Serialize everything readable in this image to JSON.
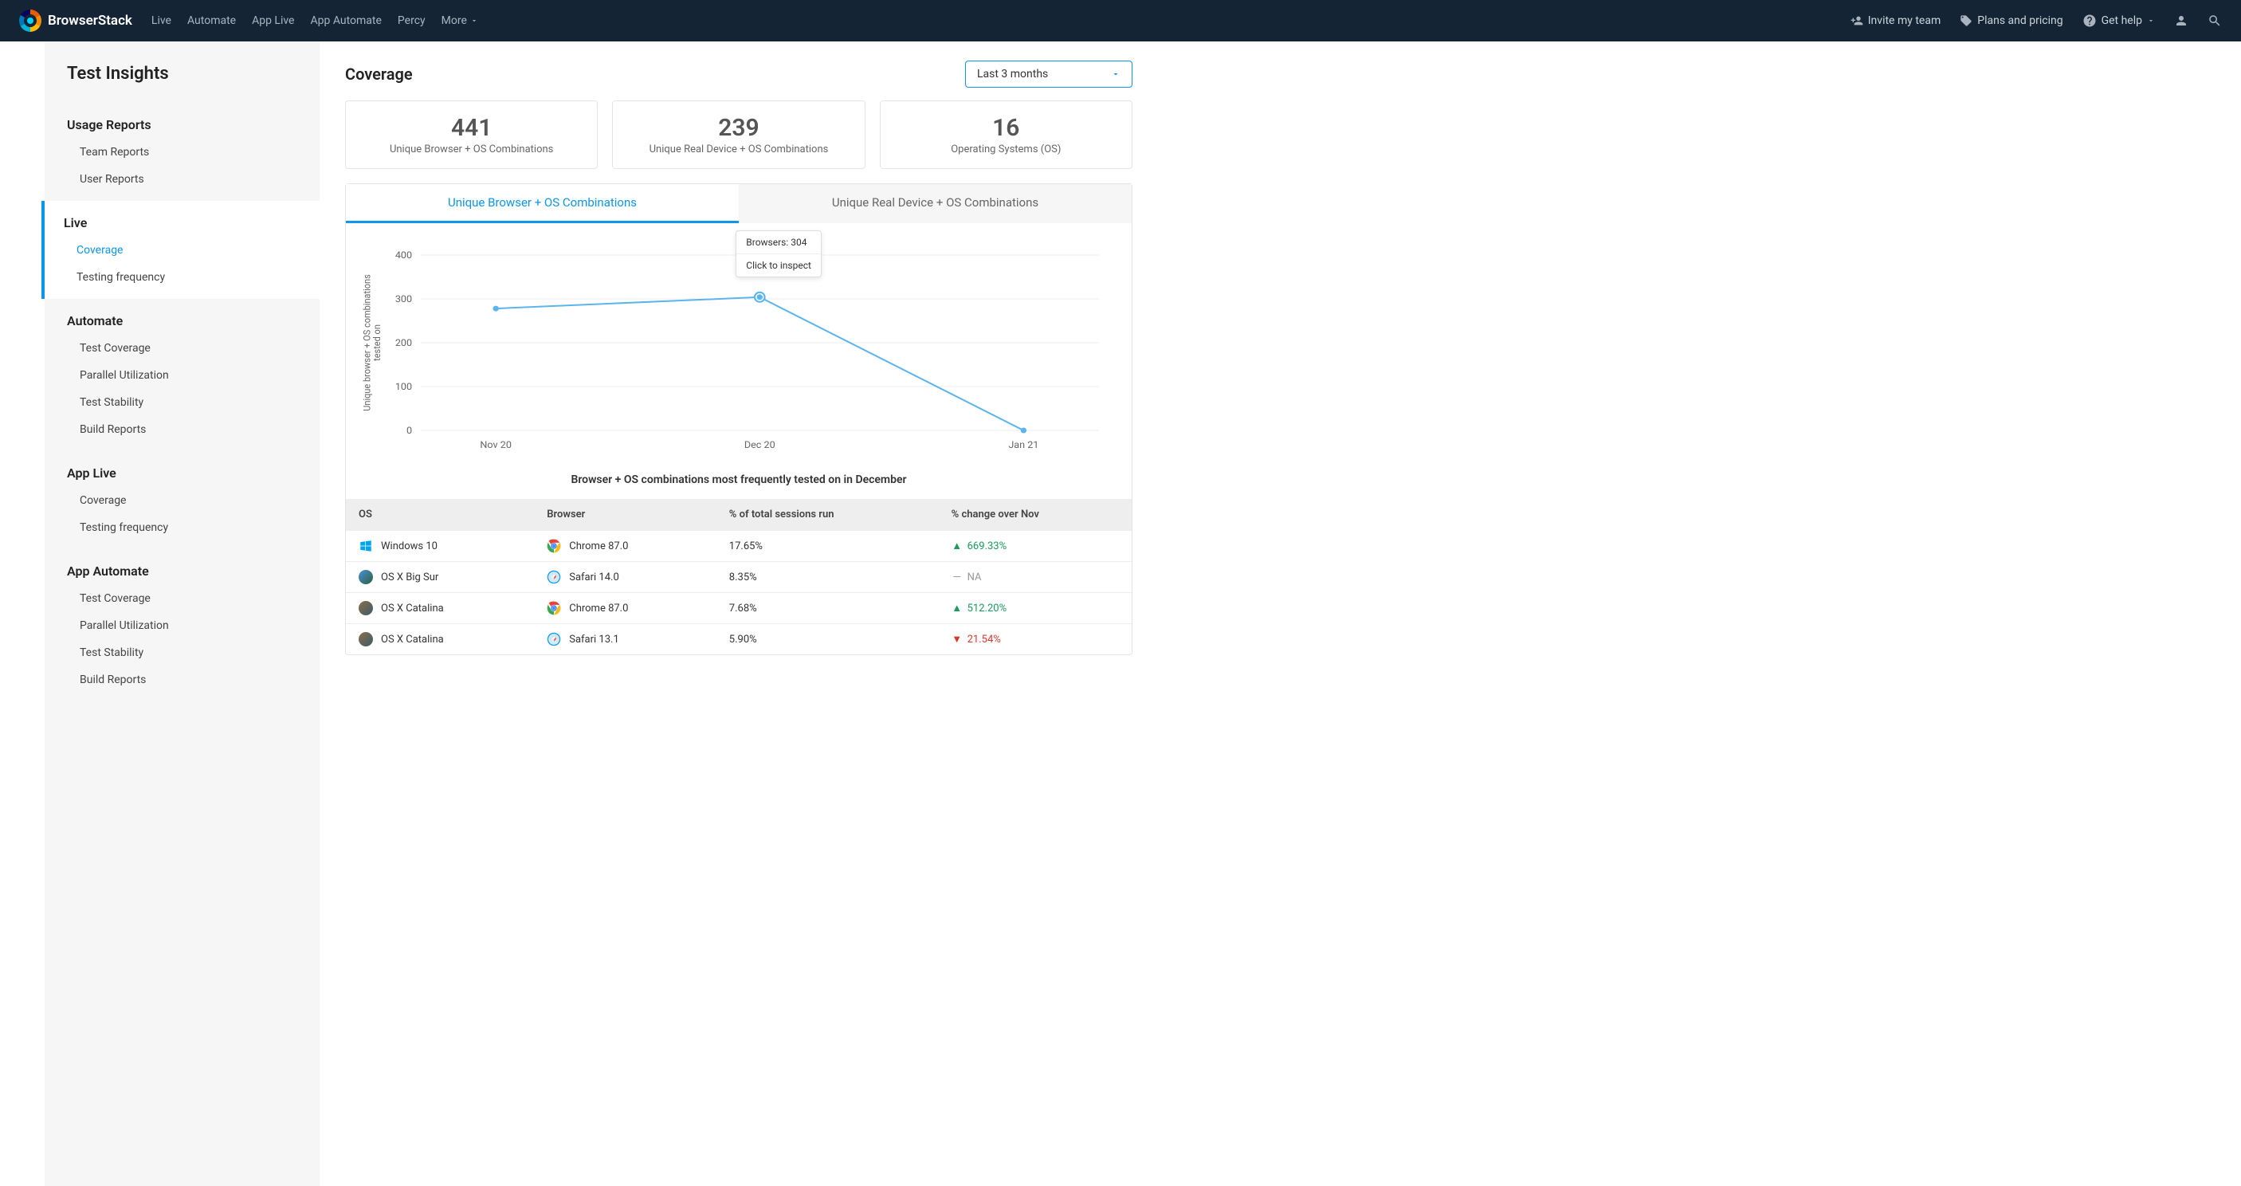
{
  "brand": "BrowserStack",
  "topnav": {
    "links": [
      "Live",
      "Automate",
      "App Live",
      "App Automate",
      "Percy",
      "More"
    ],
    "invite": "Invite my team",
    "plans": "Plans and pricing",
    "help": "Get help"
  },
  "sidebar": {
    "title": "Test Insights",
    "sections": [
      {
        "heading": "Usage Reports",
        "items": [
          "Team Reports",
          "User Reports"
        ],
        "active": false
      },
      {
        "heading": "Live",
        "items": [
          "Coverage",
          "Testing frequency"
        ],
        "active": true,
        "activeItem": 0
      },
      {
        "heading": "Automate",
        "items": [
          "Test Coverage",
          "Parallel Utilization",
          "Test Stability",
          "Build Reports"
        ],
        "active": false
      },
      {
        "heading": "App Live",
        "items": [
          "Coverage",
          "Testing frequency"
        ],
        "active": false
      },
      {
        "heading": "App Automate",
        "items": [
          "Test Coverage",
          "Parallel Utilization",
          "Test Stability",
          "Build Reports"
        ],
        "active": false
      }
    ]
  },
  "page": {
    "title": "Coverage",
    "period": "Last 3 months"
  },
  "stats": [
    {
      "value": "441",
      "label": "Unique Browser + OS Combinations"
    },
    {
      "value": "239",
      "label": "Unique Real Device + OS Combinations"
    },
    {
      "value": "16",
      "label": "Operating Systems (OS)"
    }
  ],
  "tabs": [
    {
      "label": "Unique Browser + OS Combinations",
      "active": true
    },
    {
      "label": "Unique Real Device + OS Combinations",
      "active": false
    }
  ],
  "chart": {
    "type": "line",
    "y_axis_label": "Unique browser + OS combinations tested on",
    "ylim": [
      0,
      400
    ],
    "ytick_step": 100,
    "categories": [
      "Nov 20",
      "Dec 20",
      "Jan 21"
    ],
    "values": [
      278,
      304,
      0
    ],
    "line_color": "#5ab5ec",
    "point_color": "#5ab5ec",
    "grid_color": "#eeeeee",
    "background_color": "#ffffff",
    "label_fontsize": 11,
    "tick_fontsize": 12,
    "highlighted_index": 1,
    "tooltip": {
      "line1": "Browsers: 304",
      "line2": "Click to inspect"
    }
  },
  "table": {
    "title": "Browser + OS combinations most frequently tested on in December",
    "columns": [
      "OS",
      "Browser",
      "% of total sessions run",
      "% change over Nov"
    ],
    "rows": [
      {
        "os": "Windows 10",
        "os_icon_color": "#00a4ef",
        "browser": "Chrome 87.0",
        "browser_icon": "chrome",
        "pct": "17.65%",
        "change": "669.33%",
        "dir": "up"
      },
      {
        "os": "OS X Big Sur",
        "os_icon_color": "linear-gradient(135deg,#4a90d9,#2d5f3f)",
        "browser": "Safari 14.0",
        "browser_icon": "safari",
        "pct": "8.35%",
        "change": "NA",
        "dir": "na"
      },
      {
        "os": "OS X Catalina",
        "os_icon_color": "linear-gradient(135deg,#8b6f47,#3d5a6c)",
        "browser": "Chrome 87.0",
        "browser_icon": "chrome",
        "pct": "7.68%",
        "change": "512.20%",
        "dir": "up"
      },
      {
        "os": "OS X Catalina",
        "os_icon_color": "linear-gradient(135deg,#8b6f47,#3d5a6c)",
        "browser": "Safari 13.1",
        "browser_icon": "safari",
        "pct": "5.90%",
        "change": "21.54%",
        "dir": "down"
      }
    ]
  },
  "colors": {
    "accent": "#0d96ea",
    "up": "#1a9b5c",
    "down": "#d9372c",
    "na": "#999999"
  }
}
